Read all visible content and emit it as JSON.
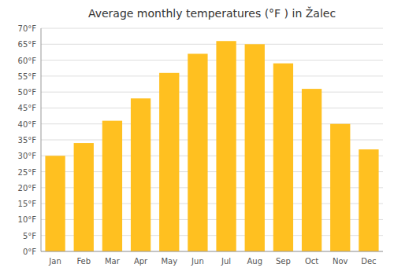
{
  "chart_data": {
    "type": "bar",
    "title": "Average monthly temperatures (°F ) in Žalec",
    "categories": [
      "Jan",
      "Feb",
      "Mar",
      "Apr",
      "May",
      "Jun",
      "Jul",
      "Aug",
      "Sep",
      "Oct",
      "Nov",
      "Dec"
    ],
    "values": [
      30,
      34,
      41,
      48,
      56,
      62,
      66,
      65,
      59,
      51,
      40,
      32
    ],
    "color": "#FFC020",
    "ylim": [
      0,
      70
    ],
    "yticks": [
      {
        "value": 0,
        "label": "0°F"
      },
      {
        "value": 5,
        "label": "5°F"
      },
      {
        "value": 10,
        "label": "10°F"
      },
      {
        "value": 15,
        "label": "15°F"
      },
      {
        "value": 20,
        "label": "20°F"
      },
      {
        "value": 25,
        "label": "25°F"
      },
      {
        "value": 30,
        "label": "30°F"
      },
      {
        "value": 35,
        "label": "35°F"
      },
      {
        "value": 40,
        "label": "40°F"
      },
      {
        "value": 45,
        "label": "45°F"
      },
      {
        "value": 50,
        "label": "50°F"
      },
      {
        "value": 55,
        "label": "55°F"
      },
      {
        "value": 60,
        "label": "60°F"
      },
      {
        "value": 65,
        "label": "65°F"
      },
      {
        "value": 70,
        "label": "70°F"
      }
    ],
    "grid": true
  }
}
